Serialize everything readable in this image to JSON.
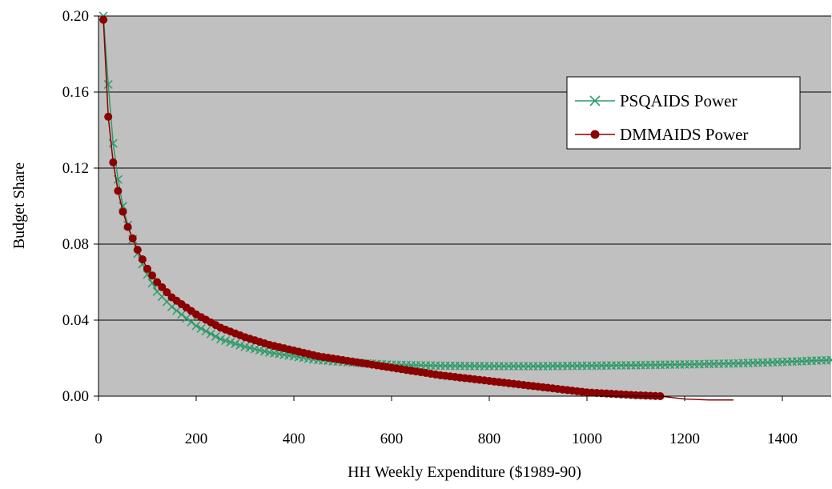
{
  "chart_data": {
    "type": "line",
    "xlabel": "HH Weekly Expenditure ($1989-90)",
    "ylabel": "Budget Share",
    "xlim": [
      0,
      1500
    ],
    "ylim": [
      0,
      0.2
    ],
    "x_ticks": [
      "0",
      "200",
      "400",
      "600",
      "800",
      "1000",
      "1200",
      "1400"
    ],
    "y_ticks": [
      "0.00",
      "0.04",
      "0.08",
      "0.12",
      "0.16",
      "0.20"
    ],
    "grid": "horizontal",
    "plot_background": "#c0c0c0",
    "legend_position": "top-right",
    "series": [
      {
        "name": "PSQAIDS Power",
        "color": "#2e9b6a",
        "marker": "x",
        "x": [
          10,
          20,
          30,
          40,
          50,
          60,
          80,
          100,
          120,
          150,
          200,
          250,
          300,
          350,
          400,
          450,
          500,
          600,
          700,
          800,
          900,
          1000,
          1100,
          1200,
          1300,
          1400,
          1500
        ],
        "y": [
          0.2,
          0.164,
          0.133,
          0.114,
          0.1,
          0.09,
          0.075,
          0.064,
          0.055,
          0.047,
          0.037,
          0.03,
          0.026,
          0.023,
          0.021,
          0.019,
          0.018,
          0.0165,
          0.016,
          0.0158,
          0.0158,
          0.016,
          0.0163,
          0.0167,
          0.0172,
          0.018,
          0.019
        ]
      },
      {
        "name": "DMMAIDS Power",
        "color": "#8b0000",
        "marker": "circle",
        "x": [
          5,
          10,
          20,
          30,
          40,
          50,
          60,
          80,
          100,
          120,
          150,
          200,
          250,
          300,
          350,
          400,
          450,
          500,
          600,
          700,
          800,
          900,
          1000,
          1100,
          1150,
          1200,
          1250,
          1300
        ],
        "y": [
          0.198,
          0.198,
          0.147,
          0.123,
          0.108,
          0.097,
          0.089,
          0.077,
          0.067,
          0.06,
          0.052,
          0.043,
          0.036,
          0.031,
          0.027,
          0.024,
          0.021,
          0.019,
          0.015,
          0.011,
          0.008,
          0.005,
          0.002,
          0.0005,
          0.0,
          -0.0015,
          -0.002,
          -0.002
        ]
      }
    ]
  }
}
